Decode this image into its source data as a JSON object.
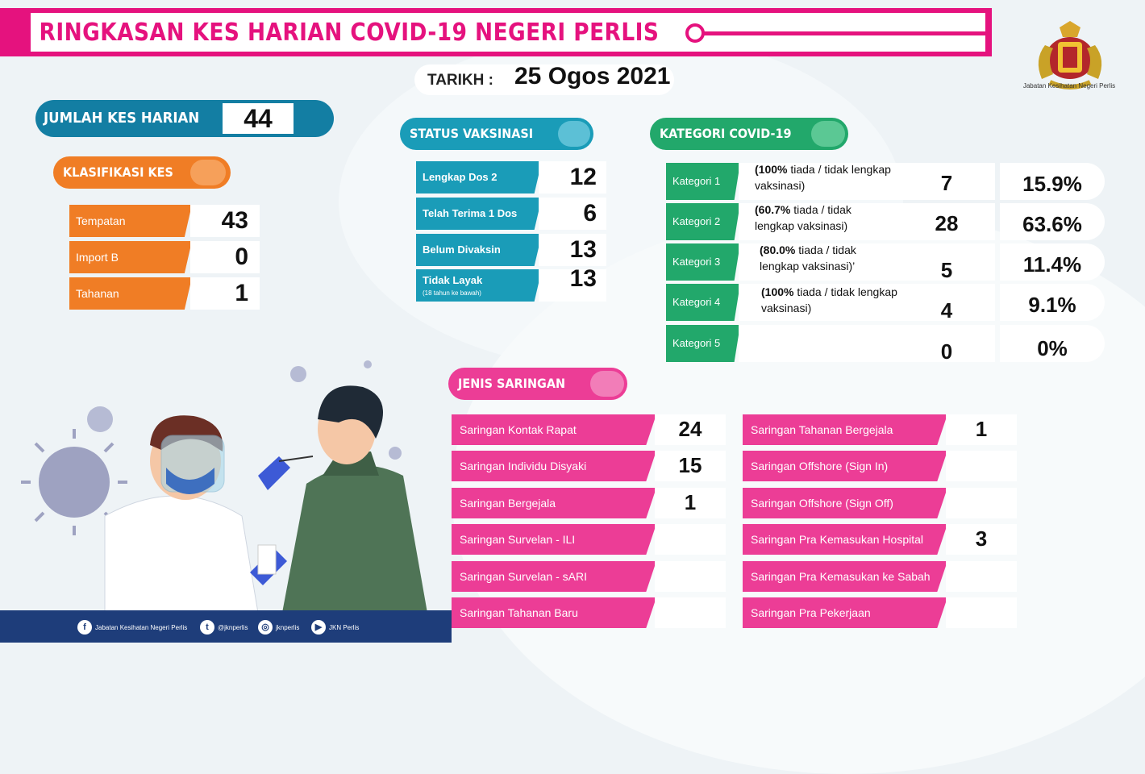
{
  "header": {
    "title": "RINGKASAN KES HARIAN COVID-19 NEGERI PERLIS",
    "date_label": "TARIKH :",
    "date_value": "25 Ogos 2021",
    "logo_caption": "Jabatan Kesihatan Negeri Perlis"
  },
  "jumlah": {
    "label": "JUMLAH KES HARIAN",
    "value": "44"
  },
  "klasifikasi": {
    "title": "KLASIFIKASI KES",
    "rows": [
      {
        "label": "Tempatan",
        "value": "43"
      },
      {
        "label": "Import B",
        "value": "0"
      },
      {
        "label": "Tahanan",
        "value": "1"
      }
    ]
  },
  "vaksinasi": {
    "title": "STATUS VAKSINASI",
    "rows": [
      {
        "label": "Lengkap Dos 2",
        "sub": "",
        "value": "12"
      },
      {
        "label": "Telah Terima 1 Dos",
        "sub": "",
        "value": "6"
      },
      {
        "label": "Belum Divaksin",
        "sub": "",
        "value": "13"
      },
      {
        "label": "Tidak Layak",
        "sub": "(18 tahun ke bawah)",
        "value": "13"
      }
    ]
  },
  "kategori": {
    "title": "KATEGORI COVID-19",
    "rows": [
      {
        "label": "Kategori 1",
        "desc_pct": "(100%",
        "desc_rest": " tiada / tidak lengkap vaksinasi)",
        "count": "7",
        "percent": "15.9%"
      },
      {
        "label": "Kategori 2",
        "desc_pct": "(60.7%",
        "desc_rest": " tiada / tidak lengkap vaksinasi)",
        "count": "28",
        "percent": "63.6%"
      },
      {
        "label": "Kategori 3",
        "desc_pct": "(80.0%",
        "desc_rest": " tiada / tidak lengkap vaksinasi)’",
        "count": "5",
        "percent": "11.4%"
      },
      {
        "label": "Kategori 4",
        "desc_pct": "(100%",
        "desc_rest": " tiada / tidak lengkap vaksinasi)",
        "count": "4",
        "percent": "9.1%"
      },
      {
        "label": "Kategori 5",
        "desc_pct": "",
        "desc_rest": "",
        "count": "0",
        "percent": "0%"
      }
    ]
  },
  "saringan": {
    "title": "JENIS SARINGAN",
    "left": [
      {
        "label": "Saringan Kontak Rapat",
        "value": "24"
      },
      {
        "label": "Saringan Individu Disyaki",
        "value": "15"
      },
      {
        "label": "Saringan Bergejala",
        "value": "1"
      },
      {
        "label": "Saringan Survelan - ILI",
        "value": ""
      },
      {
        "label": "Saringan Survelan - sARI",
        "value": ""
      },
      {
        "label": "Saringan Tahanan Baru",
        "value": ""
      }
    ],
    "right": [
      {
        "label": "Saringan Tahanan Bergejala",
        "value": "1"
      },
      {
        "label": "Saringan Offshore (Sign In)",
        "value": ""
      },
      {
        "label": "Saringan Offshore (Sign Off)",
        "value": ""
      },
      {
        "label": "Saringan Pra Kemasukan Hospital",
        "value": "3"
      },
      {
        "label": "Saringan Pra Kemasukan ke Sabah",
        "value": ""
      },
      {
        "label": "Saringan Pra Pekerjaan",
        "value": ""
      }
    ]
  },
  "footer": {
    "items": [
      {
        "icon": "facebook-icon",
        "glyph": "f",
        "text": "Jabatan Kesihatan Negeri Perlis"
      },
      {
        "icon": "twitter-icon",
        "glyph": "t",
        "text": "@jknperlis"
      },
      {
        "icon": "instagram-icon",
        "glyph": "◎",
        "text": "jknperlis"
      },
      {
        "icon": "youtube-icon",
        "glyph": "▶",
        "text": "JKN Perlis"
      }
    ]
  },
  "colors": {
    "pink": "#e5127e",
    "blue": "#137ea3",
    "orange": "#f07d25",
    "teal": "#1a9cb8",
    "green": "#22a86b",
    "saringan_pink": "#ec3d96"
  }
}
